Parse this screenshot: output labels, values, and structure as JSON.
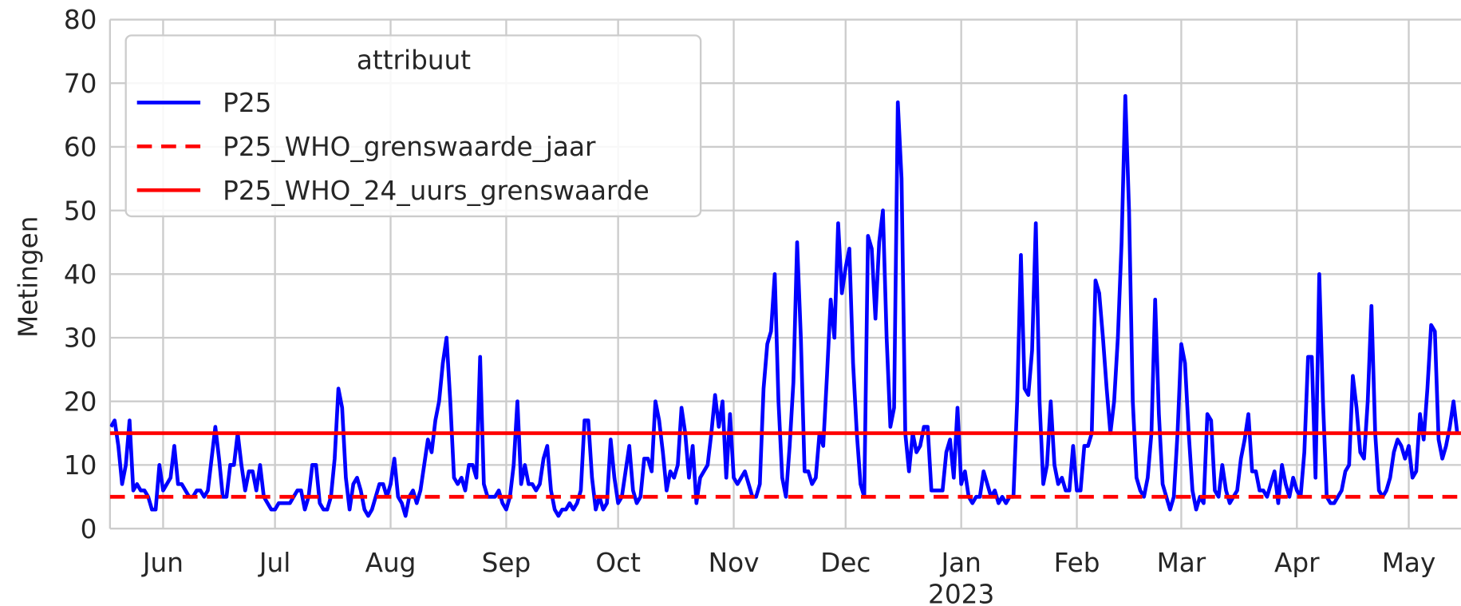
{
  "chart_data": {
    "type": "line",
    "y_label": "Metingen",
    "legend_title": "attribuut",
    "legend_corner": "upper left",
    "grid": true,
    "ylim": [
      0,
      80
    ],
    "yticks": [
      0,
      10,
      20,
      30,
      40,
      50,
      60,
      70,
      80
    ],
    "xlim": [
      -0.25,
      362
    ],
    "xticks": [
      {
        "value": 14,
        "label": "Jun"
      },
      {
        "value": 44,
        "label": "Jul"
      },
      {
        "value": 75,
        "label": "Aug"
      },
      {
        "value": 106,
        "label": "Sep"
      },
      {
        "value": 136,
        "label": "Oct"
      },
      {
        "value": 167,
        "label": "Nov"
      },
      {
        "value": 197,
        "label": "Dec"
      },
      {
        "value": 228,
        "label": "Jan",
        "sublabel": "2023"
      },
      {
        "value": 259,
        "label": "Feb"
      },
      {
        "value": 287,
        "label": "Mar"
      },
      {
        "value": 318,
        "label": "Apr"
      },
      {
        "value": 348,
        "label": "May"
      }
    ],
    "series": [
      {
        "name": "P25",
        "color": "#0000ff",
        "values": [
          16,
          17,
          13,
          7,
          10,
          17,
          6,
          7,
          6,
          6,
          5,
          3,
          3,
          10,
          6,
          7,
          8,
          13,
          7,
          7,
          6,
          5,
          5,
          6,
          6,
          5,
          6,
          11,
          16,
          11,
          5,
          5,
          10,
          10,
          15,
          10,
          6,
          9,
          9,
          6,
          10,
          5,
          4,
          3,
          3,
          4,
          4,
          4,
          4,
          5,
          6,
          6,
          3,
          5,
          10,
          10,
          4,
          3,
          3,
          5,
          11,
          22,
          19,
          8,
          3,
          7,
          8,
          6,
          3,
          2,
          3,
          5,
          7,
          7,
          5,
          7,
          11,
          5,
          4,
          2,
          5,
          6,
          4,
          6,
          10,
          14,
          12,
          17,
          20,
          26,
          30,
          20,
          8,
          7,
          8,
          6,
          10,
          10,
          8,
          27,
          7,
          5,
          5,
          5,
          6,
          4,
          3,
          5,
          10,
          20,
          7,
          10,
          7,
          7,
          6,
          7,
          11,
          13,
          6,
          3,
          2,
          3,
          3,
          4,
          3,
          4,
          6,
          17,
          17,
          8,
          3,
          5,
          3,
          4,
          14,
          8,
          4,
          5,
          9,
          13,
          6,
          4,
          5,
          11,
          11,
          9,
          20,
          17,
          12,
          6,
          9,
          8,
          10,
          19,
          15,
          8,
          13,
          4,
          8,
          9,
          10,
          15,
          21,
          16,
          20,
          8,
          18,
          8,
          7,
          8,
          9,
          7,
          5,
          5,
          7,
          22,
          29,
          31,
          40,
          20,
          8,
          5,
          13,
          23,
          45,
          30,
          9,
          9,
          7,
          8,
          15,
          13,
          24,
          36,
          30,
          48,
          37,
          41,
          44,
          26,
          15,
          7,
          5,
          46,
          44,
          33,
          45,
          50,
          30,
          16,
          19,
          67,
          55,
          15,
          9,
          15,
          12,
          13,
          16,
          16,
          6,
          6,
          6,
          6,
          12,
          14,
          8,
          19,
          7,
          9,
          5,
          4,
          5,
          5,
          9,
          7,
          5,
          6,
          4,
          5,
          4,
          5,
          5,
          20,
          43,
          22,
          21,
          28,
          48,
          20,
          7,
          10,
          20,
          10,
          7,
          8,
          6,
          6,
          13,
          6,
          6,
          13,
          13,
          15,
          39,
          37,
          30,
          22,
          15,
          20,
          30,
          45,
          68,
          50,
          20,
          8,
          6,
          5,
          8,
          15,
          36,
          18,
          7,
          5,
          3,
          5,
          15,
          29,
          26,
          15,
          6,
          3,
          5,
          4,
          18,
          17,
          6,
          5,
          10,
          6,
          4,
          5,
          6,
          11,
          14,
          18,
          9,
          9,
          6,
          6,
          5,
          7,
          9,
          4,
          10,
          7,
          5,
          8,
          6,
          5,
          12,
          27,
          27,
          8,
          40,
          20,
          5,
          4,
          4,
          5,
          6,
          9,
          10,
          24,
          19,
          12,
          11,
          20,
          35,
          15,
          6,
          5,
          6,
          8,
          12,
          14,
          13,
          11,
          13,
          8,
          9,
          18,
          14,
          22,
          32,
          31,
          14,
          11,
          13,
          16,
          20,
          15
        ]
      },
      {
        "name": "P25_WHO_grenswaarde_jaar",
        "color": "#ff0000",
        "dashed": true,
        "value": 5
      },
      {
        "name": "P25_WHO_24_uurs_grenswaarde",
        "color": "#ff0000",
        "dashed": false,
        "value": 15
      }
    ]
  }
}
